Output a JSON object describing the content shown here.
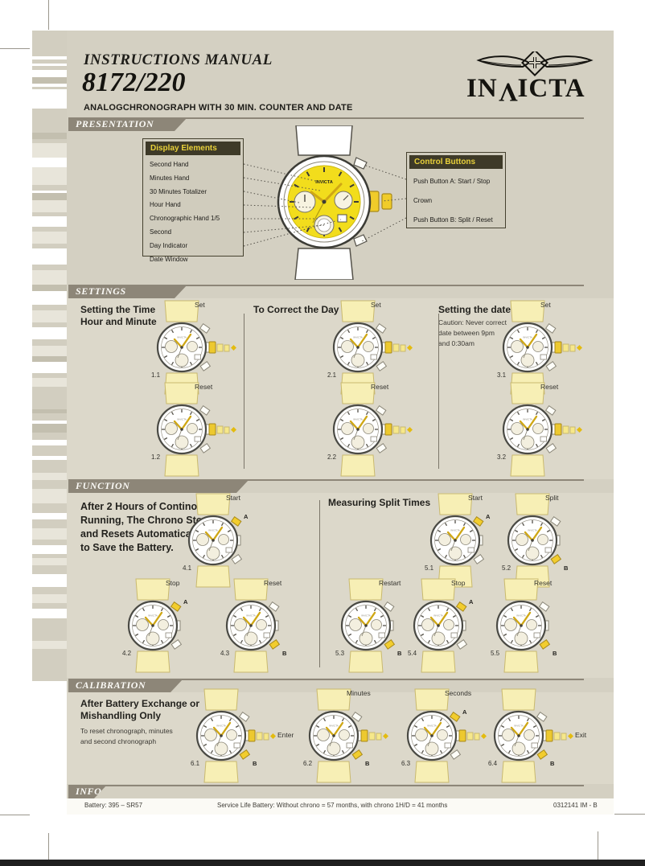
{
  "colors": {
    "page_tan": "#d4d0c2",
    "panel_tan": "#dcd8ca",
    "banner_gray": "#8d8678",
    "box_header_bg": "#3e3a28",
    "box_header_text": "#e8d03a",
    "dial_yellow": "#f2dd1c",
    "strap_yellow": "#f7efb5",
    "gold": "#edc92f"
  },
  "header": {
    "title": "INSTRUCTIONS MANUAL",
    "model": "8172/220",
    "subtitle": "ANALOGCHRONOGRAPH WITH 30 MIN. COUNTER AND DATE",
    "brand": "INVICTA"
  },
  "presentation": {
    "banner": "PRESENTATION",
    "watch_brand": "INVICTA",
    "display": {
      "title": "Display Elements",
      "items": [
        "Second Hand",
        "Minutes Hand",
        "30 Minutes Totalizer",
        "Hour Hand",
        "Chronographic Hand 1/5 Second",
        "Day Indicator",
        "Date Window"
      ]
    },
    "control": {
      "title": "Control Buttons",
      "items": [
        "Push Button A: Start / Stop",
        "Crown",
        "Push Button B: Split / Reset"
      ]
    }
  },
  "settings": {
    "banner": "SETTINGS",
    "columns": [
      {
        "heading": "Setting the Time\nHour and Minute",
        "note": "",
        "watches": [
          {
            "num": "1.1",
            "label": "Set",
            "marker": "",
            "crown": true
          },
          {
            "num": "1.2",
            "label": "Reset",
            "marker": "",
            "crown": true
          }
        ]
      },
      {
        "heading": "To Correct the Day",
        "note": "",
        "watches": [
          {
            "num": "2.1",
            "label": "Set",
            "marker": "",
            "crown": true
          },
          {
            "num": "2.2",
            "label": "Reset",
            "marker": "",
            "crown": true
          }
        ]
      },
      {
        "heading": "Setting the date",
        "note": "Caution: Never correct\ndate between 9pm\nand 0:30am",
        "watches": [
          {
            "num": "3.1",
            "label": "Set",
            "marker": "",
            "crown": true
          },
          {
            "num": "3.2",
            "label": "Reset",
            "marker": "",
            "crown": true
          }
        ]
      }
    ]
  },
  "function": {
    "banner": "FUNCTION",
    "left_note": "After 2 Hours of Continous\nRunning, The Chrono Stops\nand Resets Automatically\nto Save the Battery.",
    "right_heading": "Measuring Split Times",
    "watches": [
      {
        "num": "4.1",
        "label": "Start",
        "marker": "A",
        "crown": false
      },
      {
        "num": "4.2",
        "label": "Stop",
        "marker": "A",
        "crown": false
      },
      {
        "num": "4.3",
        "label": "Reset",
        "marker": "B",
        "crown": false
      },
      {
        "num": "5.1",
        "label": "Start",
        "marker": "A",
        "crown": false
      },
      {
        "num": "5.2",
        "label": "Split",
        "marker": "B",
        "crown": false
      },
      {
        "num": "5.3",
        "label": "Restart",
        "marker": "B",
        "crown": false
      },
      {
        "num": "5.4",
        "label": "Stop",
        "marker": "A",
        "crown": false
      },
      {
        "num": "5.5",
        "label": "Reset",
        "marker": "B",
        "crown": false
      }
    ]
  },
  "calibration": {
    "banner": "CALIBRATION",
    "heading": "After Battery Exchange or\nMishandling Only",
    "note": "To reset chronograph, minutes\nand second chronograph",
    "watches": [
      {
        "num": "6.1",
        "label": "Enter",
        "marker": "B",
        "crown": true
      },
      {
        "num": "6.2",
        "label": "Minutes",
        "marker": "B",
        "crown": true
      },
      {
        "num": "6.3",
        "label": "Seconds",
        "marker": "A",
        "crown": true
      },
      {
        "num": "6.4",
        "label": "Exit",
        "marker": "B",
        "crown": true
      }
    ]
  },
  "info": {
    "banner": "INFO",
    "battery": "Battery: 395 – SR57",
    "service": "Service Life Battery: Without chrono = 57 months, with chrono 1H/D = 41 months",
    "code": "0312141 IM - B"
  }
}
